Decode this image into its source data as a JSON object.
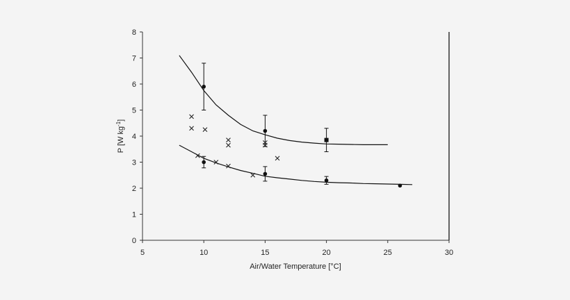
{
  "chart_data": {
    "type": "scatter",
    "xlabel": "Air/Water Temperature [°C]",
    "ylabel": {
      "base": "P [W kg",
      "sup": "-1",
      "end": "]"
    },
    "xlim": [
      5,
      30
    ],
    "ylim": [
      0,
      8
    ],
    "xticks": [
      5,
      10,
      15,
      20,
      25,
      30
    ],
    "yticks": [
      0,
      1,
      2,
      3,
      4,
      5,
      6,
      7,
      8
    ],
    "grid": false,
    "legend": "none",
    "series": [
      {
        "marker": "circle",
        "points": [
          {
            "x": 10,
            "y": 5.9,
            "err": 0.9
          },
          {
            "x": 15,
            "y": 4.2,
            "err": 0.6
          }
        ]
      },
      {
        "marker": "square",
        "points": [
          {
            "x": 20,
            "y": 3.85,
            "err": 0.45
          }
        ]
      },
      {
        "marker": "circle",
        "points": [
          {
            "x": 10,
            "y": 3.0,
            "err": 0.22
          },
          {
            "x": 15,
            "y": 2.55,
            "err": 0.28
          },
          {
            "x": 20,
            "y": 2.3,
            "err": 0.15
          },
          {
            "x": 26,
            "y": 2.1,
            "err": 0
          }
        ]
      },
      {
        "marker": "cross",
        "points": [
          {
            "x": 9,
            "y": 4.75
          },
          {
            "x": 9,
            "y": 4.3
          },
          {
            "x": 10.1,
            "y": 4.25
          },
          {
            "x": 12,
            "y": 3.85
          },
          {
            "x": 12,
            "y": 3.65
          },
          {
            "x": 15,
            "y": 3.75
          },
          {
            "x": 15,
            "y": 3.65
          },
          {
            "x": 16,
            "y": 3.15
          },
          {
            "x": 9.5,
            "y": 3.25
          },
          {
            "x": 11,
            "y": 3.0
          },
          {
            "x": 12,
            "y": 2.85
          },
          {
            "x": 14,
            "y": 2.5
          }
        ]
      }
    ],
    "curves": [
      {
        "style": "solid",
        "points": [
          [
            8,
            7.1
          ],
          [
            9,
            6.45
          ],
          [
            10,
            5.75
          ],
          [
            11,
            5.2
          ],
          [
            12,
            4.8
          ],
          [
            13,
            4.45
          ],
          [
            14,
            4.2
          ],
          [
            15,
            4.05
          ],
          [
            16,
            3.92
          ],
          [
            17,
            3.83
          ],
          [
            18,
            3.77
          ],
          [
            19,
            3.73
          ],
          [
            20,
            3.7
          ],
          [
            21,
            3.69
          ],
          [
            22,
            3.68
          ],
          [
            23,
            3.67
          ],
          [
            24,
            3.67
          ],
          [
            25,
            3.67
          ]
        ]
      },
      {
        "style": "solid",
        "points": [
          [
            8,
            3.65
          ],
          [
            9,
            3.4
          ],
          [
            10,
            3.15
          ],
          [
            11,
            2.97
          ],
          [
            12,
            2.82
          ],
          [
            13,
            2.68
          ],
          [
            14,
            2.57
          ],
          [
            15,
            2.46
          ],
          [
            16,
            2.4
          ],
          [
            17,
            2.35
          ],
          [
            18,
            2.3
          ],
          [
            19,
            2.26
          ],
          [
            20,
            2.23
          ],
          [
            21,
            2.21
          ],
          [
            22,
            2.2
          ],
          [
            23,
            2.18
          ],
          [
            24,
            2.17
          ],
          [
            25,
            2.16
          ],
          [
            26,
            2.15
          ],
          [
            27,
            2.14
          ]
        ]
      }
    ]
  }
}
